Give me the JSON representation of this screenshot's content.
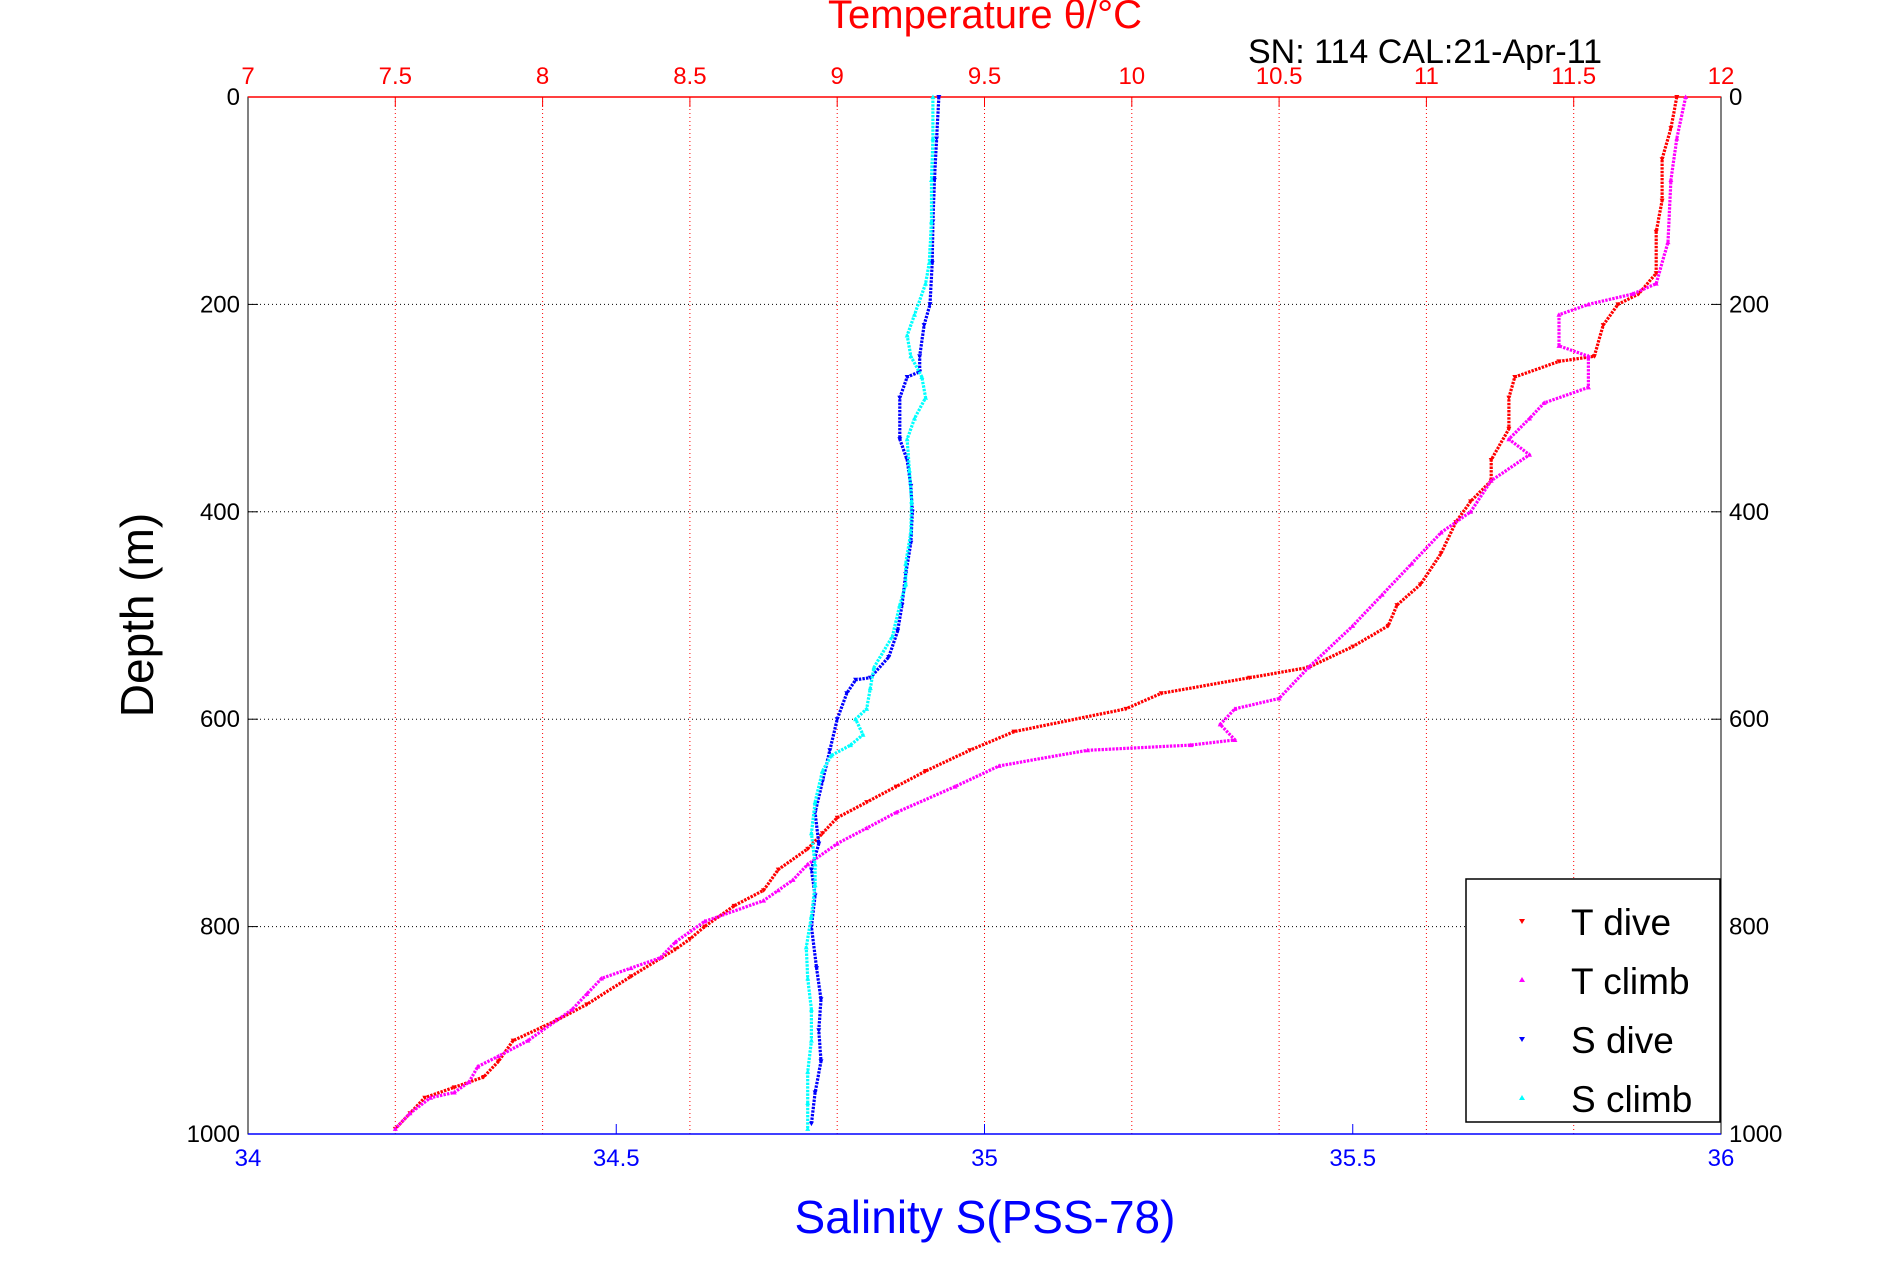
{
  "chart_data": {
    "type": "scatter",
    "title": "Temperature θ/°C",
    "subtitle": "SN: 114  CAL:21-Apr-11",
    "xlabel": "Salinity S(PSS-78)",
    "ylabel": "Depth (m)",
    "x_top_label": "Temperature θ/°C",
    "ylim": [
      0,
      1000
    ],
    "y_reversed": true,
    "yticks": [
      0,
      200,
      400,
      600,
      800,
      1000
    ],
    "x_top": {
      "lim": [
        7,
        12
      ],
      "ticks": [
        7,
        7.5,
        8,
        8.5,
        9,
        9.5,
        10,
        10.5,
        11,
        11.5,
        12
      ],
      "tick_labels": [
        "7",
        "7.5",
        "8",
        "8.5",
        "9",
        "9.5",
        "10",
        "10.5",
        "11",
        "11.5",
        "12"
      ]
    },
    "x_bottom": {
      "lim": [
        34,
        36
      ],
      "ticks": [
        34,
        34.5,
        35,
        35.5,
        36
      ],
      "tick_labels": [
        "34",
        "34.5",
        "35",
        "35.5",
        "36"
      ]
    },
    "grid": true,
    "legend_position": "bottom-right",
    "colors": {
      "top_axis": "#ff0000",
      "bottom_axis": "#0000ff",
      "title": "#ff0000",
      "xlabel": "#0000ff"
    },
    "series": [
      {
        "name": "T dive",
        "axis": "top",
        "color": "#ff0000",
        "marker": "down-triangle",
        "points": [
          [
            11.85,
            0
          ],
          [
            11.83,
            30
          ],
          [
            11.8,
            60
          ],
          [
            11.8,
            100
          ],
          [
            11.78,
            130
          ],
          [
            11.78,
            170
          ],
          [
            11.72,
            190
          ],
          [
            11.65,
            200
          ],
          [
            11.6,
            220
          ],
          [
            11.57,
            250
          ],
          [
            11.45,
            255
          ],
          [
            11.3,
            270
          ],
          [
            11.28,
            290
          ],
          [
            11.28,
            320
          ],
          [
            11.22,
            350
          ],
          [
            11.22,
            370
          ],
          [
            11.15,
            390
          ],
          [
            11.1,
            410
          ],
          [
            11.05,
            440
          ],
          [
            10.98,
            470
          ],
          [
            10.9,
            490
          ],
          [
            10.87,
            510
          ],
          [
            10.75,
            530
          ],
          [
            10.6,
            550
          ],
          [
            10.4,
            560
          ],
          [
            10.1,
            575
          ],
          [
            9.98,
            590
          ],
          [
            9.6,
            612
          ],
          [
            9.45,
            630
          ],
          [
            9.3,
            650
          ],
          [
            9.2,
            665
          ],
          [
            9.1,
            680
          ],
          [
            9.0,
            695
          ],
          [
            8.95,
            710
          ],
          [
            8.9,
            725
          ],
          [
            8.8,
            745
          ],
          [
            8.75,
            765
          ],
          [
            8.65,
            780
          ],
          [
            8.55,
            800
          ],
          [
            8.5,
            812
          ],
          [
            8.45,
            822
          ],
          [
            8.3,
            848
          ],
          [
            8.15,
            875
          ],
          [
            8.05,
            890
          ],
          [
            7.9,
            910
          ],
          [
            7.85,
            930
          ],
          [
            7.8,
            945
          ],
          [
            7.7,
            955
          ],
          [
            7.6,
            965
          ],
          [
            7.55,
            980
          ],
          [
            7.5,
            995
          ]
        ]
      },
      {
        "name": "T climb",
        "axis": "top",
        "color": "#ff00ff",
        "marker": "up-triangle",
        "points": [
          [
            11.88,
            0
          ],
          [
            11.85,
            40
          ],
          [
            11.83,
            80
          ],
          [
            11.82,
            140
          ],
          [
            11.78,
            180
          ],
          [
            11.7,
            190
          ],
          [
            11.55,
            200
          ],
          [
            11.45,
            210
          ],
          [
            11.45,
            240
          ],
          [
            11.55,
            250
          ],
          [
            11.55,
            280
          ],
          [
            11.4,
            295
          ],
          [
            11.35,
            310
          ],
          [
            11.28,
            330
          ],
          [
            11.35,
            345
          ],
          [
            11.22,
            370
          ],
          [
            11.15,
            400
          ],
          [
            11.05,
            420
          ],
          [
            10.95,
            450
          ],
          [
            10.85,
            480
          ],
          [
            10.75,
            510
          ],
          [
            10.6,
            550
          ],
          [
            10.5,
            580
          ],
          [
            10.35,
            590
          ],
          [
            10.3,
            605
          ],
          [
            10.35,
            620
          ],
          [
            10.2,
            625
          ],
          [
            9.85,
            630
          ],
          [
            9.55,
            645
          ],
          [
            9.4,
            665
          ],
          [
            9.2,
            690
          ],
          [
            9.1,
            705
          ],
          [
            9.0,
            720
          ],
          [
            8.9,
            740
          ],
          [
            8.85,
            755
          ],
          [
            8.8,
            765
          ],
          [
            8.75,
            775
          ],
          [
            8.55,
            795
          ],
          [
            8.45,
            815
          ],
          [
            8.4,
            830
          ],
          [
            8.3,
            840
          ],
          [
            8.2,
            850
          ],
          [
            8.15,
            865
          ],
          [
            8.1,
            880
          ],
          [
            7.95,
            910
          ],
          [
            7.85,
            925
          ],
          [
            7.78,
            935
          ],
          [
            7.75,
            950
          ],
          [
            7.7,
            960
          ],
          [
            7.62,
            965
          ],
          [
            7.55,
            980
          ],
          [
            7.5,
            995
          ]
        ]
      },
      {
        "name": "S dive",
        "axis": "bottom",
        "color": "#0000ff",
        "marker": "down-triangle",
        "points": [
          [
            34.938,
            0
          ],
          [
            34.935,
            40
          ],
          [
            34.932,
            80
          ],
          [
            34.93,
            120
          ],
          [
            34.929,
            160
          ],
          [
            34.926,
            200
          ],
          [
            34.918,
            220
          ],
          [
            34.912,
            250
          ],
          [
            34.912,
            265
          ],
          [
            34.895,
            270
          ],
          [
            34.885,
            290
          ],
          [
            34.885,
            330
          ],
          [
            34.895,
            350
          ],
          [
            34.9,
            375
          ],
          [
            34.902,
            400
          ],
          [
            34.9,
            430
          ],
          [
            34.893,
            460
          ],
          [
            34.888,
            490
          ],
          [
            34.882,
            515
          ],
          [
            34.87,
            540
          ],
          [
            34.845,
            560
          ],
          [
            34.825,
            562
          ],
          [
            34.813,
            575
          ],
          [
            34.8,
            600
          ],
          [
            34.79,
            630
          ],
          [
            34.78,
            660
          ],
          [
            34.77,
            690
          ],
          [
            34.775,
            720
          ],
          [
            34.765,
            745
          ],
          [
            34.77,
            770
          ],
          [
            34.765,
            800
          ],
          [
            34.772,
            840
          ],
          [
            34.778,
            870
          ],
          [
            34.775,
            900
          ],
          [
            34.778,
            930
          ],
          [
            34.77,
            960
          ],
          [
            34.765,
            990
          ]
        ]
      },
      {
        "name": "S climb",
        "axis": "bottom",
        "color": "#00ffff",
        "marker": "up-triangle",
        "points": [
          [
            34.93,
            0
          ],
          [
            34.93,
            40
          ],
          [
            34.928,
            80
          ],
          [
            34.928,
            120
          ],
          [
            34.925,
            160
          ],
          [
            34.92,
            180
          ],
          [
            34.905,
            210
          ],
          [
            34.895,
            230
          ],
          [
            34.9,
            250
          ],
          [
            34.915,
            270
          ],
          [
            34.92,
            290
          ],
          [
            34.905,
            310
          ],
          [
            34.895,
            330
          ],
          [
            34.898,
            360
          ],
          [
            34.901,
            390
          ],
          [
            34.9,
            420
          ],
          [
            34.893,
            450
          ],
          [
            34.893,
            470
          ],
          [
            34.885,
            490
          ],
          [
            34.875,
            520
          ],
          [
            34.85,
            550
          ],
          [
            34.845,
            570
          ],
          [
            34.84,
            590
          ],
          [
            34.825,
            600
          ],
          [
            34.835,
            615
          ],
          [
            34.818,
            625
          ],
          [
            34.792,
            635
          ],
          [
            34.78,
            650
          ],
          [
            34.77,
            680
          ],
          [
            34.765,
            710
          ],
          [
            34.77,
            740
          ],
          [
            34.77,
            760
          ],
          [
            34.765,
            790
          ],
          [
            34.758,
            820
          ],
          [
            34.76,
            850
          ],
          [
            34.765,
            880
          ],
          [
            34.765,
            910
          ],
          [
            34.76,
            940
          ],
          [
            34.76,
            970
          ],
          [
            34.76,
            995
          ]
        ]
      }
    ]
  }
}
